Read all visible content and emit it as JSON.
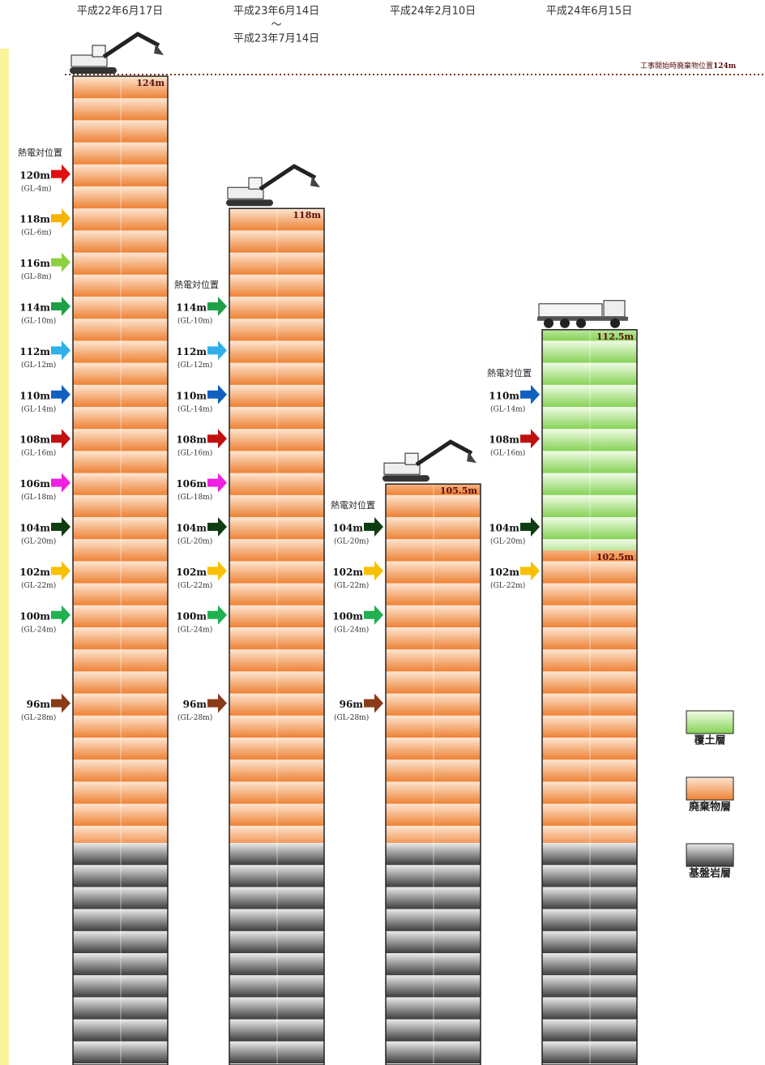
{
  "start_note": {
    "text": "工事開始時廃棄物位置",
    "value": "124m"
  },
  "columns": [
    {
      "date": [
        "平成22年6月17日"
      ],
      "top_label": "124m",
      "thermocouple_label": "熱電対位置",
      "markers": [
        {
          "label": "120m",
          "gl": "(GL-4m)",
          "color": "#e01010"
        },
        {
          "label": "118m",
          "gl": "(GL-6m)",
          "color": "#f5b400"
        },
        {
          "label": "116m",
          "gl": "(GL-8m)",
          "color": "#8cd040"
        },
        {
          "label": "114m",
          "gl": "(GL-10m)",
          "color": "#1fa048"
        },
        {
          "label": "112m",
          "gl": "(GL-12m)",
          "color": "#30b0e8"
        },
        {
          "label": "110m",
          "gl": "(GL-14m)",
          "color": "#1060c0"
        },
        {
          "label": "108m",
          "gl": "(GL-16m)",
          "color": "#c01010"
        },
        {
          "label": "106m",
          "gl": "(GL-18m)",
          "color": "#f020e0"
        },
        {
          "label": "104m",
          "gl": "(GL-20m)",
          "color": "#0f3d12"
        },
        {
          "label": "102m",
          "gl": "(GL-22m)",
          "color": "#f8c000"
        },
        {
          "label": "100m",
          "gl": "(GL-24m)",
          "color": "#20b050"
        },
        {
          "label": "96m",
          "gl": "(GL-28m)",
          "color": "#8b3a1a"
        }
      ]
    },
    {
      "date": [
        "平成23年6月14日",
        "～",
        "平成23年7月14日"
      ],
      "top_label": "118m",
      "thermocouple_label": "熱電対位置",
      "markers": [
        {
          "label": "114m",
          "gl": "(GL-10m)",
          "color": "#1fa048"
        },
        {
          "label": "112m",
          "gl": "(GL-12m)",
          "color": "#30b0e8"
        },
        {
          "label": "110m",
          "gl": "(GL-14m)",
          "color": "#1060c0"
        },
        {
          "label": "108m",
          "gl": "(GL-16m)",
          "color": "#c01010"
        },
        {
          "label": "106m",
          "gl": "(GL-18m)",
          "color": "#f020e0"
        },
        {
          "label": "104m",
          "gl": "(GL-20m)",
          "color": "#0f3d12"
        },
        {
          "label": "102m",
          "gl": "(GL-22m)",
          "color": "#f8c000"
        },
        {
          "label": "100m",
          "gl": "(GL-24m)",
          "color": "#20b050"
        },
        {
          "label": "96m",
          "gl": "(GL-28m)",
          "color": "#8b3a1a"
        }
      ]
    },
    {
      "date": [
        "平成24年2月10日"
      ],
      "top_label": "105.5m",
      "thermocouple_label": "熱電対位置",
      "markers": [
        {
          "label": "104m",
          "gl": "(GL-20m)",
          "color": "#0f3d12"
        },
        {
          "label": "102m",
          "gl": "(GL-22m)",
          "color": "#f8c000"
        },
        {
          "label": "100m",
          "gl": "(GL-24m)",
          "color": "#20b050"
        },
        {
          "label": "96m",
          "gl": "(GL-28m)",
          "color": "#8b3a1a"
        }
      ]
    },
    {
      "date": [
        "平成24年6月15日"
      ],
      "cover_top_label": "112.5m",
      "top_label": "102.5m",
      "thermocouple_label": "熱電対位置",
      "markers": [
        {
          "label": "110m",
          "gl": "(GL-14m)",
          "color": "#1060c0"
        },
        {
          "label": "108m",
          "gl": "(GL-16m)",
          "color": "#c01010"
        },
        {
          "label": "104m",
          "gl": "(GL-20m)",
          "color": "#0f3d12"
        },
        {
          "label": "102m",
          "gl": "(GL-22m)",
          "color": "#f8c000"
        }
      ]
    }
  ],
  "legend": [
    {
      "label": "覆土層",
      "kind": "cover"
    },
    {
      "label": "廃棄物層",
      "kind": "waste"
    },
    {
      "label": "基盤岩層",
      "kind": "rock"
    }
  ]
}
